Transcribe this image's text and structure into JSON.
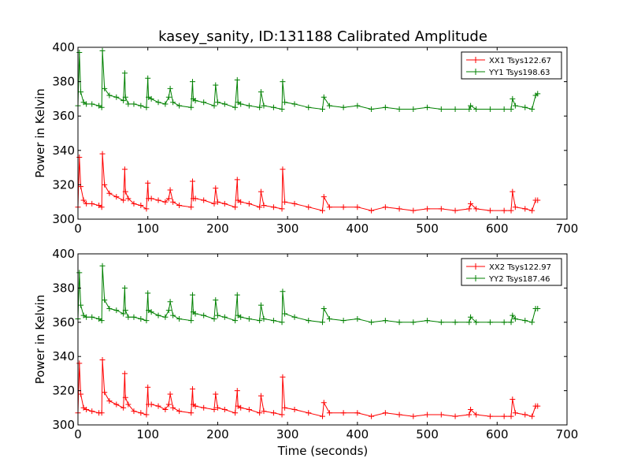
{
  "figure": {
    "title": "kasey_sanity, ID:131188 Calibrated Amplitude",
    "xlabel": "Time (seconds)"
  },
  "chart_data": [
    {
      "type": "line",
      "title": "kasey_sanity, ID:131188 Calibrated Amplitude",
      "xlabel": "",
      "ylabel": "Power in Kelvin",
      "xlim": [
        0,
        700
      ],
      "ylim": [
        300,
        400
      ],
      "xticks": [
        0,
        100,
        200,
        300,
        400,
        500,
        600,
        700
      ],
      "yticks": [
        300,
        320,
        340,
        360,
        380,
        400
      ],
      "grid": false,
      "legend": "top-right",
      "marker": "+",
      "series": [
        {
          "name": "XX1 Tsys122.67",
          "color": "#ff0000",
          "x": [
            0,
            2,
            4,
            8,
            12,
            20,
            30,
            34,
            35,
            38,
            45,
            55,
            65,
            67,
            68,
            72,
            80,
            90,
            98,
            100,
            101,
            105,
            115,
            125,
            130,
            132,
            136,
            145,
            162,
            164,
            165,
            168,
            180,
            195,
            197,
            200,
            210,
            225,
            228,
            229,
            233,
            245,
            260,
            262,
            266,
            280,
            292,
            293,
            296,
            310,
            330,
            350,
            352,
            360,
            380,
            400,
            420,
            440,
            460,
            480,
            500,
            520,
            540,
            560,
            562,
            570,
            590,
            610,
            620,
            622,
            626,
            640,
            650,
            655,
            658
          ],
          "y": [
            307,
            336,
            319,
            311,
            309,
            309,
            308,
            307,
            338,
            320,
            315,
            313,
            311,
            329,
            316,
            312,
            309,
            308,
            306,
            321,
            312,
            312,
            311,
            310,
            312,
            317,
            310,
            308,
            307,
            322,
            312,
            312,
            311,
            309,
            318,
            310,
            309,
            307,
            323,
            311,
            310,
            309,
            307,
            316,
            308,
            307,
            306,
            329,
            310,
            309,
            307,
            305,
            313,
            307,
            307,
            307,
            305,
            307,
            306,
            305,
            306,
            306,
            305,
            306,
            309,
            306,
            305,
            305,
            305,
            316,
            307,
            306,
            305,
            311,
            311
          ]
        },
        {
          "name": "YY1 Tsys198.63",
          "color": "#008000",
          "x": [
            0,
            2,
            4,
            8,
            12,
            20,
            30,
            34,
            35,
            38,
            45,
            55,
            65,
            67,
            68,
            72,
            80,
            90,
            98,
            100,
            101,
            105,
            115,
            125,
            130,
            132,
            136,
            145,
            162,
            164,
            165,
            168,
            180,
            195,
            197,
            200,
            210,
            225,
            228,
            229,
            233,
            245,
            260,
            262,
            266,
            280,
            292,
            293,
            296,
            310,
            330,
            350,
            352,
            360,
            380,
            400,
            420,
            440,
            460,
            480,
            500,
            520,
            540,
            560,
            562,
            570,
            590,
            610,
            620,
            622,
            626,
            640,
            650,
            655,
            658
          ],
          "y": [
            366,
            397,
            374,
            368,
            367,
            367,
            366,
            365,
            398,
            376,
            372,
            371,
            369,
            385,
            371,
            367,
            367,
            366,
            365,
            382,
            371,
            370,
            368,
            367,
            371,
            376,
            368,
            366,
            365,
            380,
            370,
            369,
            368,
            366,
            378,
            368,
            367,
            365,
            381,
            368,
            367,
            366,
            365,
            374,
            366,
            365,
            364,
            380,
            368,
            367,
            365,
            364,
            371,
            366,
            365,
            366,
            364,
            365,
            364,
            364,
            365,
            364,
            364,
            364,
            366,
            364,
            364,
            364,
            364,
            370,
            366,
            365,
            364,
            372,
            373
          ]
        }
      ]
    },
    {
      "type": "line",
      "title": "",
      "xlabel": "Time (seconds)",
      "ylabel": "Power in Kelvin",
      "xlim": [
        0,
        700
      ],
      "ylim": [
        300,
        400
      ],
      "xticks": [
        0,
        100,
        200,
        300,
        400,
        500,
        600,
        700
      ],
      "yticks": [
        300,
        320,
        340,
        360,
        380,
        400
      ],
      "grid": false,
      "legend": "top-right",
      "marker": "+",
      "series": [
        {
          "name": "XX2 Tsys122.97",
          "color": "#ff0000",
          "x": [
            0,
            2,
            4,
            8,
            12,
            20,
            30,
            34,
            35,
            38,
            45,
            55,
            65,
            67,
            68,
            72,
            80,
            90,
            98,
            100,
            101,
            105,
            115,
            125,
            130,
            132,
            136,
            145,
            162,
            164,
            165,
            168,
            180,
            195,
            197,
            200,
            210,
            225,
            228,
            229,
            233,
            245,
            260,
            262,
            266,
            280,
            292,
            293,
            296,
            310,
            330,
            350,
            352,
            360,
            380,
            400,
            420,
            440,
            460,
            480,
            500,
            520,
            540,
            560,
            562,
            570,
            590,
            610,
            620,
            622,
            626,
            640,
            650,
            655,
            658
          ],
          "y": [
            307,
            336,
            318,
            310,
            309,
            308,
            307,
            307,
            338,
            319,
            314,
            312,
            310,
            330,
            316,
            312,
            308,
            307,
            306,
            322,
            312,
            312,
            311,
            309,
            312,
            318,
            310,
            308,
            307,
            321,
            312,
            311,
            310,
            309,
            318,
            310,
            309,
            307,
            320,
            311,
            310,
            309,
            307,
            317,
            308,
            307,
            306,
            328,
            310,
            309,
            307,
            305,
            313,
            307,
            307,
            307,
            305,
            307,
            306,
            305,
            306,
            306,
            305,
            306,
            309,
            306,
            305,
            305,
            305,
            315,
            307,
            306,
            305,
            311,
            311
          ]
        },
        {
          "name": "YY2 Tsys187.46",
          "color": "#008000",
          "x": [
            0,
            2,
            4,
            8,
            12,
            20,
            30,
            34,
            35,
            38,
            45,
            55,
            65,
            67,
            68,
            72,
            80,
            90,
            98,
            100,
            101,
            105,
            115,
            125,
            130,
            132,
            136,
            145,
            162,
            164,
            165,
            168,
            180,
            195,
            197,
            200,
            210,
            225,
            228,
            229,
            233,
            245,
            260,
            262,
            266,
            280,
            292,
            293,
            296,
            310,
            330,
            350,
            352,
            360,
            380,
            400,
            420,
            440,
            460,
            480,
            500,
            520,
            540,
            560,
            562,
            570,
            590,
            610,
            620,
            622,
            626,
            640,
            650,
            655,
            658
          ],
          "y": [
            362,
            389,
            370,
            364,
            363,
            363,
            362,
            361,
            393,
            373,
            368,
            367,
            365,
            380,
            367,
            363,
            363,
            362,
            361,
            377,
            367,
            366,
            364,
            363,
            367,
            372,
            364,
            362,
            361,
            376,
            366,
            365,
            364,
            362,
            373,
            364,
            363,
            361,
            376,
            364,
            363,
            362,
            361,
            370,
            362,
            361,
            360,
            378,
            365,
            363,
            361,
            360,
            368,
            362,
            361,
            362,
            360,
            361,
            360,
            360,
            361,
            360,
            360,
            360,
            363,
            360,
            360,
            360,
            360,
            364,
            362,
            361,
            360,
            368,
            368
          ]
        }
      ]
    }
  ]
}
